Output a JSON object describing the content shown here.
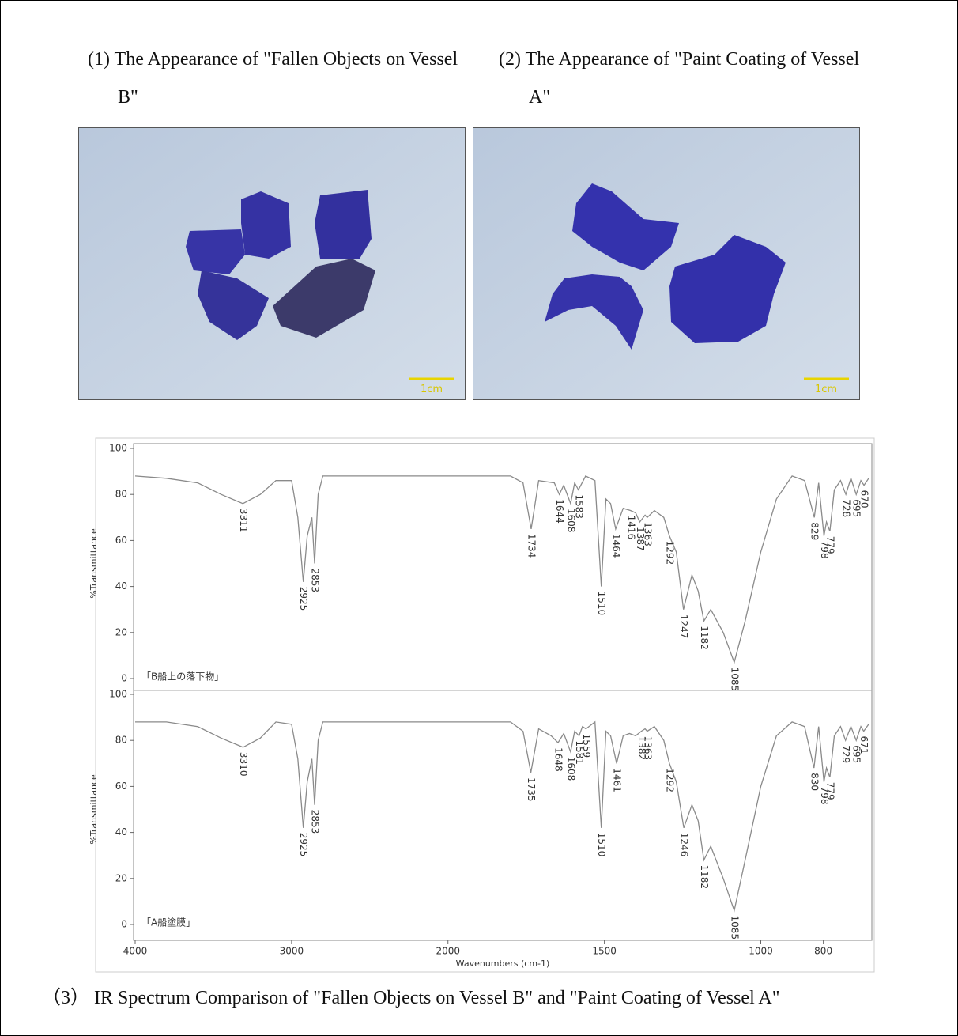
{
  "figure": {
    "panels": [
      {
        "caption": "(1) The Appearance of \"Fallen Objects on Vessel B\"",
        "scale_label": "1cm"
      },
      {
        "caption": "(2) The Appearance of \"Paint Coating of Vessel A\"",
        "scale_label": "1cm"
      }
    ],
    "caption": "（3） IR Spectrum Comparison of \"Fallen Objects on Vessel B\" and \"Paint Coating of Vessel A\""
  },
  "chart_data": [
    {
      "type": "line",
      "annotation": "「B船上の落下物」",
      "y_label": "%Transmittance",
      "color": "#8a8a8a",
      "xlim": [
        4000,
        650
      ],
      "x_expand_below": 2000,
      "ylim": [
        0,
        100
      ],
      "yticks": [
        0,
        20,
        40,
        60,
        80,
        100
      ],
      "x": [
        4000,
        3800,
        3600,
        3450,
        3311,
        3200,
        3100,
        3000,
        2960,
        2925,
        2900,
        2870,
        2853,
        2830,
        2800,
        2500,
        2000,
        1800,
        1760,
        1734,
        1710,
        1660,
        1644,
        1630,
        1608,
        1595,
        1583,
        1560,
        1530,
        1510,
        1495,
        1480,
        1464,
        1440,
        1416,
        1400,
        1387,
        1370,
        1363,
        1340,
        1310,
        1292,
        1270,
        1247,
        1220,
        1200,
        1182,
        1160,
        1120,
        1085,
        1050,
        1000,
        950,
        900,
        860,
        829,
        815,
        798,
        790,
        779,
        765,
        745,
        728,
        712,
        695,
        680,
        670,
        655
      ],
      "values": [
        88,
        87,
        85,
        80,
        76,
        80,
        86,
        86,
        70,
        42,
        62,
        70,
        50,
        80,
        88,
        88,
        88,
        88,
        85,
        65,
        86,
        85,
        80,
        84,
        76,
        85,
        82,
        88,
        86,
        40,
        78,
        76,
        65,
        74,
        73,
        72,
        68,
        71,
        70,
        73,
        70,
        62,
        55,
        30,
        45,
        38,
        25,
        30,
        20,
        7,
        25,
        55,
        78,
        88,
        86,
        70,
        85,
        62,
        68,
        64,
        82,
        86,
        80,
        87,
        80,
        86,
        84,
        87
      ],
      "peaks": [
        3311,
        2925,
        2853,
        1734,
        1644,
        1608,
        1583,
        1510,
        1464,
        1416,
        1387,
        1363,
        1292,
        1247,
        1182,
        1085,
        829,
        798,
        779,
        728,
        695,
        670
      ]
    },
    {
      "type": "line",
      "annotation": "「A船塗膜」",
      "y_label": "%Transmittance",
      "x_label": "Wavenumbers (cm-1)",
      "color": "#8a8a8a",
      "xlim": [
        4000,
        650
      ],
      "x_expand_below": 2000,
      "ylim": [
        0,
        100
      ],
      "yticks": [
        0,
        20,
        40,
        60,
        80,
        100
      ],
      "xticks": [
        4000,
        3000,
        2000,
        1500,
        1000,
        800
      ],
      "x": [
        4000,
        3800,
        3600,
        3450,
        3310,
        3200,
        3100,
        3000,
        2960,
        2925,
        2900,
        2870,
        2853,
        2830,
        2800,
        2500,
        2000,
        1800,
        1760,
        1735,
        1710,
        1670,
        1648,
        1630,
        1608,
        1595,
        1581,
        1570,
        1559,
        1530,
        1510,
        1495,
        1480,
        1461,
        1440,
        1420,
        1400,
        1382,
        1370,
        1363,
        1340,
        1310,
        1292,
        1270,
        1246,
        1220,
        1200,
        1182,
        1160,
        1120,
        1085,
        1050,
        1000,
        950,
        900,
        860,
        830,
        815,
        798,
        790,
        779,
        765,
        745,
        729,
        712,
        695,
        680,
        671,
        655
      ],
      "values": [
        88,
        88,
        86,
        81,
        77,
        81,
        88,
        87,
        72,
        42,
        62,
        72,
        52,
        80,
        88,
        88,
        88,
        88,
        84,
        66,
        85,
        82,
        79,
        83,
        75,
        84,
        82,
        86,
        85,
        88,
        42,
        84,
        82,
        70,
        82,
        83,
        82,
        84,
        85,
        84,
        86,
        80,
        70,
        62,
        42,
        52,
        45,
        28,
        34,
        20,
        6,
        28,
        60,
        82,
        88,
        86,
        68,
        86,
        62,
        68,
        64,
        82,
        86,
        80,
        86,
        80,
        86,
        84,
        87
      ],
      "peaks": [
        3310,
        2925,
        2853,
        1735,
        1648,
        1608,
        1581,
        1559,
        1510,
        1461,
        1382,
        1363,
        1292,
        1246,
        1182,
        1085,
        830,
        798,
        779,
        729,
        695,
        671
      ]
    }
  ]
}
